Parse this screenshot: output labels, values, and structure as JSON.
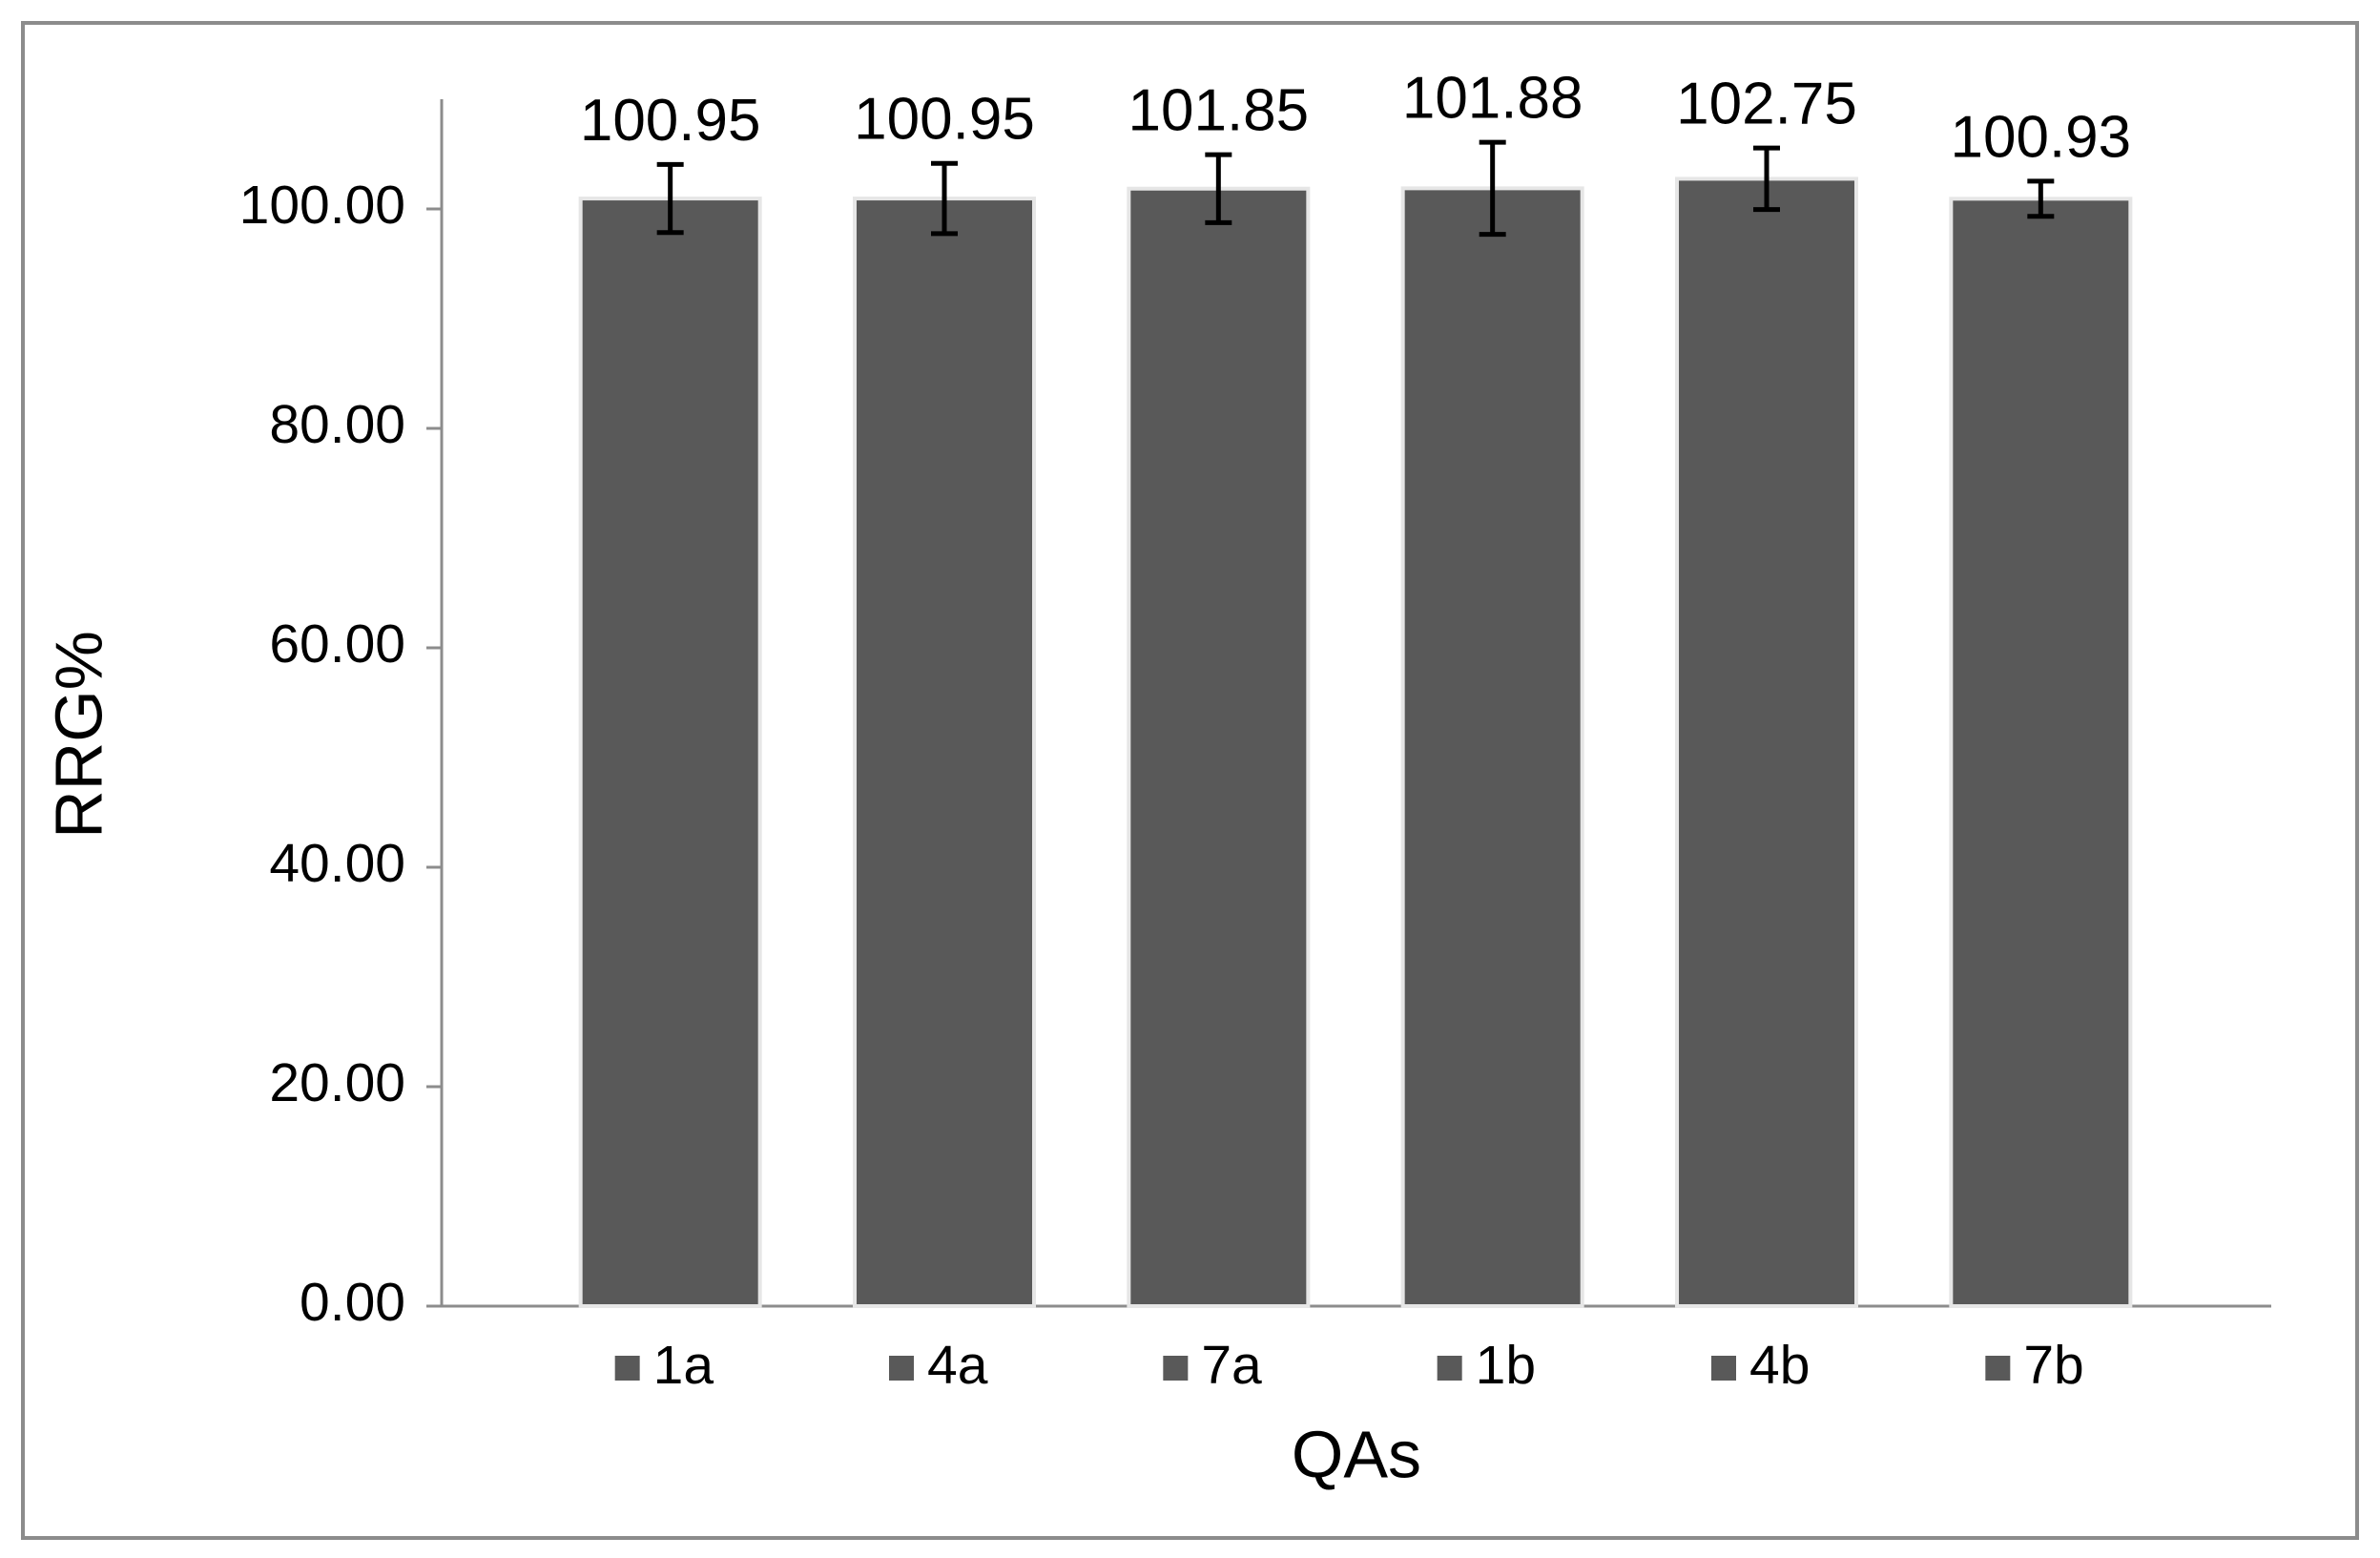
{
  "chart_data": {
    "type": "bar",
    "x_label": "QAs",
    "y_label": "RRG%",
    "categories": [
      "1a",
      "4a",
      "7a",
      "1b",
      "4b",
      "7b"
    ],
    "values": [
      100.95,
      100.95,
      101.85,
      101.88,
      102.75,
      100.93
    ],
    "errors": [
      3.1,
      3.2,
      3.1,
      4.2,
      2.8,
      1.6
    ],
    "color": "#595959",
    "ylim": [
      0,
      110
    ],
    "yticks": [
      {
        "value": 0,
        "label": "0.00"
      },
      {
        "value": 20,
        "label": "20.00"
      },
      {
        "value": 40,
        "label": "40.00"
      },
      {
        "value": 60,
        "label": "60.00"
      },
      {
        "value": 80,
        "label": "80.00"
      },
      {
        "value": 100,
        "label": "100.00"
      }
    ],
    "grid": false
  }
}
